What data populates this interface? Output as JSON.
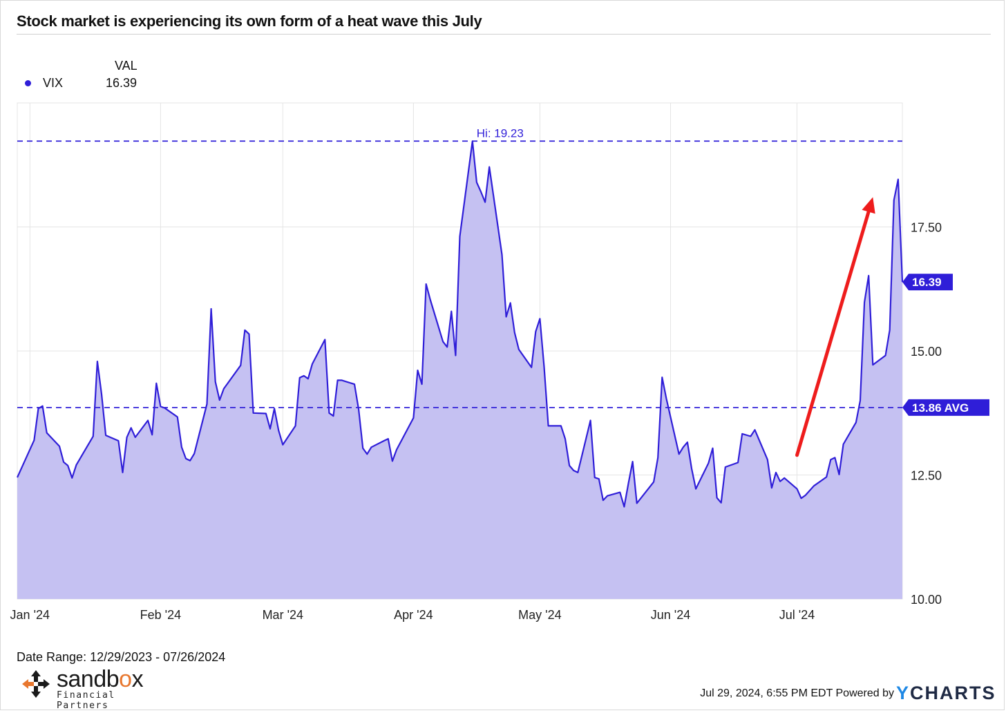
{
  "title": "Stock market is experiencing its own form of a heat wave this July",
  "legend": {
    "column_header": "VAL",
    "series_name": "VIX",
    "series_value": "16.39",
    "dot_color": "#2f1ed8"
  },
  "footer": {
    "date_range": "Date Range: 12/29/2023 - 07/26/2024",
    "timestamp": "Jul 29, 2024, 6:55 PM EDT",
    "powered_by": "Powered by",
    "ycharts_y": "Y",
    "ycharts_rest": "CHARTS"
  },
  "branding": {
    "logo_word_a": "sandb",
    "logo_word_o": "o",
    "logo_word_b": "x",
    "logo_subtitle": "Financial Partners"
  },
  "colors": {
    "line": "#2f1ed8",
    "fill": "#c5c1f2",
    "reference_line": "#2f1ed8",
    "arrow": "#ee1c1c",
    "grid": "#e4e4e4",
    "ycharts_blue": "#1e88e5",
    "logo_orange": "#e8772e"
  },
  "chart_data": {
    "type": "area",
    "series": [
      {
        "name": "VIX",
        "x": [
          "2023-12-29",
          "2024-01-02",
          "2024-01-03",
          "2024-01-04",
          "2024-01-05",
          "2024-01-08",
          "2024-01-09",
          "2024-01-10",
          "2024-01-11",
          "2024-01-12",
          "2024-01-16",
          "2024-01-17",
          "2024-01-18",
          "2024-01-19",
          "2024-01-22",
          "2024-01-23",
          "2024-01-24",
          "2024-01-25",
          "2024-01-26",
          "2024-01-29",
          "2024-01-30",
          "2024-01-31",
          "2024-02-01",
          "2024-02-02",
          "2024-02-05",
          "2024-02-06",
          "2024-02-07",
          "2024-02-08",
          "2024-02-09",
          "2024-02-12",
          "2024-02-13",
          "2024-02-14",
          "2024-02-15",
          "2024-02-16",
          "2024-02-20",
          "2024-02-21",
          "2024-02-22",
          "2024-02-23",
          "2024-02-26",
          "2024-02-27",
          "2024-02-28",
          "2024-02-29",
          "2024-03-01",
          "2024-03-04",
          "2024-03-05",
          "2024-03-06",
          "2024-03-07",
          "2024-03-08",
          "2024-03-11",
          "2024-03-12",
          "2024-03-13",
          "2024-03-14",
          "2024-03-15",
          "2024-03-18",
          "2024-03-19",
          "2024-03-20",
          "2024-03-21",
          "2024-03-22",
          "2024-03-25",
          "2024-03-26",
          "2024-03-27",
          "2024-03-28",
          "2024-04-01",
          "2024-04-02",
          "2024-04-03",
          "2024-04-04",
          "2024-04-05",
          "2024-04-08",
          "2024-04-09",
          "2024-04-10",
          "2024-04-11",
          "2024-04-12",
          "2024-04-15",
          "2024-04-16",
          "2024-04-17",
          "2024-04-18",
          "2024-04-19",
          "2024-04-22",
          "2024-04-23",
          "2024-04-24",
          "2024-04-25",
          "2024-04-26",
          "2024-04-29",
          "2024-04-30",
          "2024-05-01",
          "2024-05-02",
          "2024-05-03",
          "2024-05-06",
          "2024-05-07",
          "2024-05-08",
          "2024-05-09",
          "2024-05-10",
          "2024-05-13",
          "2024-05-14",
          "2024-05-15",
          "2024-05-16",
          "2024-05-17",
          "2024-05-20",
          "2024-05-21",
          "2024-05-22",
          "2024-05-23",
          "2024-05-24",
          "2024-05-28",
          "2024-05-29",
          "2024-05-30",
          "2024-05-31",
          "2024-06-03",
          "2024-06-04",
          "2024-06-05",
          "2024-06-06",
          "2024-06-07",
          "2024-06-10",
          "2024-06-11",
          "2024-06-12",
          "2024-06-13",
          "2024-06-14",
          "2024-06-17",
          "2024-06-18",
          "2024-06-20",
          "2024-06-21",
          "2024-06-24",
          "2024-06-25",
          "2024-06-26",
          "2024-06-27",
          "2024-06-28",
          "2024-07-01",
          "2024-07-02",
          "2024-07-03",
          "2024-07-05",
          "2024-07-08",
          "2024-07-09",
          "2024-07-10",
          "2024-07-11",
          "2024-07-12",
          "2024-07-15",
          "2024-07-16",
          "2024-07-17",
          "2024-07-18",
          "2024-07-19",
          "2024-07-22",
          "2024-07-23",
          "2024-07-24",
          "2024-07-25",
          "2024-07-26"
        ],
        "values": [
          12.45,
          13.2,
          13.84,
          13.89,
          13.35,
          13.08,
          12.76,
          12.69,
          12.44,
          12.7,
          13.28,
          14.79,
          14.13,
          13.3,
          13.19,
          12.55,
          13.26,
          13.45,
          13.26,
          13.6,
          13.31,
          14.35,
          13.88,
          13.85,
          13.67,
          13.06,
          12.83,
          12.79,
          12.93,
          13.93,
          15.85,
          14.38,
          14.01,
          14.24,
          14.71,
          15.42,
          15.34,
          13.75,
          13.74,
          13.43,
          13.84,
          13.4,
          13.11,
          13.49,
          14.46,
          14.5,
          14.44,
          14.74,
          15.23,
          13.75,
          13.69,
          14.41,
          14.41,
          14.33,
          13.82,
          13.04,
          12.92,
          13.06,
          13.19,
          13.23,
          12.78,
          13.01,
          13.65,
          14.61,
          14.33,
          16.35,
          16.03,
          15.19,
          15.08,
          15.8,
          14.91,
          17.31,
          19.23,
          18.4,
          18.21,
          18.0,
          18.71,
          16.94,
          15.69,
          15.97,
          15.37,
          15.03,
          14.67,
          15.39,
          15.65,
          14.68,
          13.49,
          13.49,
          13.23,
          12.69,
          12.59,
          12.55,
          13.6,
          12.45,
          12.42,
          11.99,
          12.08,
          12.15,
          11.86,
          12.33,
          12.77,
          11.93,
          12.36,
          12.85,
          14.47,
          14.04,
          12.92,
          13.06,
          13.16,
          12.63,
          12.22,
          12.74,
          13.04,
          12.04,
          11.94,
          12.66,
          12.75,
          13.33,
          13.28,
          13.41,
          12.81,
          12.24,
          12.55,
          12.37,
          12.44,
          12.22,
          12.03,
          12.09,
          12.28,
          12.46,
          12.81,
          12.85,
          12.51,
          13.12,
          13.56,
          14.0,
          15.98,
          16.52,
          14.72,
          14.91,
          15.42,
          18.04,
          18.46,
          16.39
        ]
      }
    ],
    "x_ticks": [
      "Jan '24",
      "Feb '24",
      "Mar '24",
      "Apr '24",
      "May '24",
      "Jun '24",
      "Jul '24"
    ],
    "y_ticks": [
      "10.00",
      "12.50",
      "15.00",
      "17.50"
    ],
    "ylim": [
      10,
      20
    ],
    "ylabel": "",
    "xlabel": "",
    "grid": true,
    "high": {
      "label": "Hi: 19.23",
      "value": 19.23
    },
    "average": {
      "label": "13.86 AVG",
      "value": 13.86
    },
    "last_value": {
      "label": "16.39",
      "value": 16.39
    },
    "annotation": {
      "type": "arrow",
      "from": [
        "2024-07-01",
        12.9
      ],
      "to": [
        "2024-07-19",
        18.1
      ]
    }
  }
}
